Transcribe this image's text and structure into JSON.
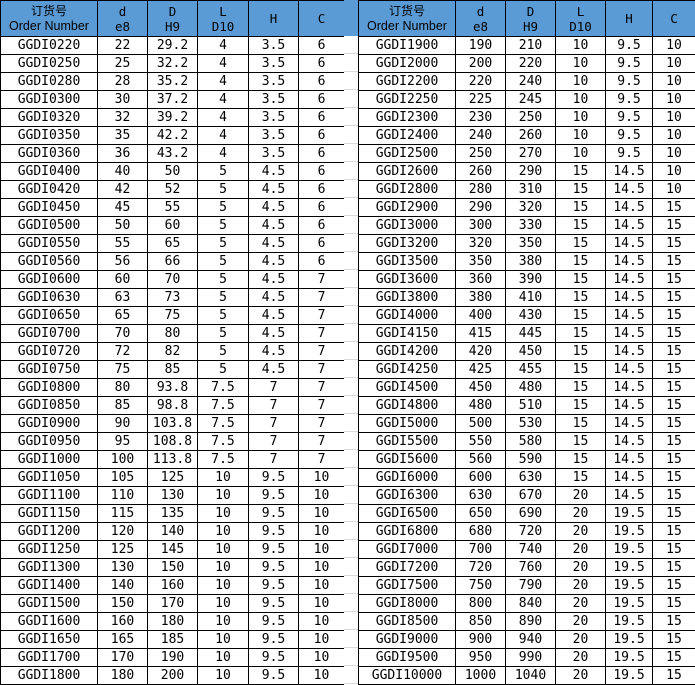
{
  "header": {
    "order_cn": "订货号",
    "order_en": "Order Number",
    "d": "d",
    "d_tol": "e8",
    "D": "D",
    "D_tol": "H9",
    "L": "L",
    "L_tol": "D10",
    "H": "H",
    "C": "C"
  },
  "colors": {
    "header_bg": "#5b9bd5"
  },
  "left_rows": [
    [
      "GGDI0220",
      "22",
      "29.2",
      "4",
      "3.5",
      "6"
    ],
    [
      "GGDI0250",
      "25",
      "32.2",
      "4",
      "3.5",
      "6"
    ],
    [
      "GGDI0280",
      "28",
      "35.2",
      "4",
      "3.5",
      "6"
    ],
    [
      "GGDI0300",
      "30",
      "37.2",
      "4",
      "3.5",
      "6"
    ],
    [
      "GGDI0320",
      "32",
      "39.2",
      "4",
      "3.5",
      "6"
    ],
    [
      "GGDI0350",
      "35",
      "42.2",
      "4",
      "3.5",
      "6"
    ],
    [
      "GGDI0360",
      "36",
      "43.2",
      "4",
      "3.5",
      "6"
    ],
    [
      "GGDI0400",
      "40",
      "50",
      "5",
      "4.5",
      "6"
    ],
    [
      "GGDI0420",
      "42",
      "52",
      "5",
      "4.5",
      "6"
    ],
    [
      "GGDI0450",
      "45",
      "55",
      "5",
      "4.5",
      "6"
    ],
    [
      "GGDI0500",
      "50",
      "60",
      "5",
      "4.5",
      "6"
    ],
    [
      "GGDI0550",
      "55",
      "65",
      "5",
      "4.5",
      "6"
    ],
    [
      "GGDI0560",
      "56",
      "66",
      "5",
      "4.5",
      "6"
    ],
    [
      "GGDI0600",
      "60",
      "70",
      "5",
      "4.5",
      "7"
    ],
    [
      "GGDI0630",
      "63",
      "73",
      "5",
      "4.5",
      "7"
    ],
    [
      "GGDI0650",
      "65",
      "75",
      "5",
      "4.5",
      "7"
    ],
    [
      "GGDI0700",
      "70",
      "80",
      "5",
      "4.5",
      "7"
    ],
    [
      "GGDI0720",
      "72",
      "82",
      "5",
      "4.5",
      "7"
    ],
    [
      "GGDI0750",
      "75",
      "85",
      "5",
      "4.5",
      "7"
    ],
    [
      "GGDI0800",
      "80",
      "93.8",
      "7.5",
      "7",
      "7"
    ],
    [
      "GGDI0850",
      "85",
      "98.8",
      "7.5",
      "7",
      "7"
    ],
    [
      "GGDI0900",
      "90",
      "103.8",
      "7.5",
      "7",
      "7"
    ],
    [
      "GGDI0950",
      "95",
      "108.8",
      "7.5",
      "7",
      "7"
    ],
    [
      "GGDI1000",
      "100",
      "113.8",
      "7.5",
      "7",
      "7"
    ],
    [
      "GGDI1050",
      "105",
      "125",
      "10",
      "9.5",
      "10"
    ],
    [
      "GGDI1100",
      "110",
      "130",
      "10",
      "9.5",
      "10"
    ],
    [
      "GGDI1150",
      "115",
      "135",
      "10",
      "9.5",
      "10"
    ],
    [
      "GGDI1200",
      "120",
      "140",
      "10",
      "9.5",
      "10"
    ],
    [
      "GGDI1250",
      "125",
      "145",
      "10",
      "9.5",
      "10"
    ],
    [
      "GGDI1300",
      "130",
      "150",
      "10",
      "9.5",
      "10"
    ],
    [
      "GGDI1400",
      "140",
      "160",
      "10",
      "9.5",
      "10"
    ],
    [
      "GGDI1500",
      "150",
      "170",
      "10",
      "9.5",
      "10"
    ],
    [
      "GGDI1600",
      "160",
      "180",
      "10",
      "9.5",
      "10"
    ],
    [
      "GGDI1650",
      "165",
      "185",
      "10",
      "9.5",
      "10"
    ],
    [
      "GGDI1700",
      "170",
      "190",
      "10",
      "9.5",
      "10"
    ],
    [
      "GGDI1800",
      "180",
      "200",
      "10",
      "9.5",
      "10"
    ]
  ],
  "right_rows": [
    [
      "GGDI1900",
      "190",
      "210",
      "10",
      "9.5",
      "10"
    ],
    [
      "GGDI2000",
      "200",
      "220",
      "10",
      "9.5",
      "10"
    ],
    [
      "GGDI2200",
      "220",
      "240",
      "10",
      "9.5",
      "10"
    ],
    [
      "GGDI2250",
      "225",
      "245",
      "10",
      "9.5",
      "10"
    ],
    [
      "GGDI2300",
      "230",
      "250",
      "10",
      "9.5",
      "10"
    ],
    [
      "GGDI2400",
      "240",
      "260",
      "10",
      "9.5",
      "10"
    ],
    [
      "GGDI2500",
      "250",
      "270",
      "10",
      "9.5",
      "10"
    ],
    [
      "GGDI2600",
      "260",
      "290",
      "15",
      "14.5",
      "10"
    ],
    [
      "GGDI2800",
      "280",
      "310",
      "15",
      "14.5",
      "10"
    ],
    [
      "GGDI2900",
      "290",
      "320",
      "15",
      "14.5",
      "15"
    ],
    [
      "GGDI3000",
      "300",
      "330",
      "15",
      "14.5",
      "15"
    ],
    [
      "GGDI3200",
      "320",
      "350",
      "15",
      "14.5",
      "15"
    ],
    [
      "GGDI3500",
      "350",
      "380",
      "15",
      "14.5",
      "15"
    ],
    [
      "GGDI3600",
      "360",
      "390",
      "15",
      "14.5",
      "15"
    ],
    [
      "GGDI3800",
      "380",
      "410",
      "15",
      "14.5",
      "15"
    ],
    [
      "GGDI4000",
      "400",
      "430",
      "15",
      "14.5",
      "15"
    ],
    [
      "GGDI4150",
      "415",
      "445",
      "15",
      "14.5",
      "15"
    ],
    [
      "GGDI4200",
      "420",
      "450",
      "15",
      "14.5",
      "15"
    ],
    [
      "GGDI4250",
      "425",
      "455",
      "15",
      "14.5",
      "15"
    ],
    [
      "GGDI4500",
      "450",
      "480",
      "15",
      "14.5",
      "15"
    ],
    [
      "GGDI4800",
      "480",
      "510",
      "15",
      "14.5",
      "15"
    ],
    [
      "GGDI5000",
      "500",
      "530",
      "15",
      "14.5",
      "15"
    ],
    [
      "GGDI5500",
      "550",
      "580",
      "15",
      "14.5",
      "15"
    ],
    [
      "GGDI5600",
      "560",
      "590",
      "15",
      "14.5",
      "15"
    ],
    [
      "GGDI6000",
      "600",
      "630",
      "15",
      "14.5",
      "15"
    ],
    [
      "GGDI6300",
      "630",
      "670",
      "20",
      "14.5",
      "15"
    ],
    [
      "GGDI6500",
      "650",
      "690",
      "20",
      "19.5",
      "15"
    ],
    [
      "GGDI6800",
      "680",
      "720",
      "20",
      "19.5",
      "15"
    ],
    [
      "GGDI7000",
      "700",
      "740",
      "20",
      "19.5",
      "15"
    ],
    [
      "GGDI7200",
      "720",
      "760",
      "20",
      "19.5",
      "15"
    ],
    [
      "GGDI7500",
      "750",
      "790",
      "20",
      "19.5",
      "15"
    ],
    [
      "GGDI8000",
      "800",
      "840",
      "20",
      "19.5",
      "15"
    ],
    [
      "GGDI8500",
      "850",
      "890",
      "20",
      "19.5",
      "15"
    ],
    [
      "GGDI9000",
      "900",
      "940",
      "20",
      "19.5",
      "15"
    ],
    [
      "GGDI9500",
      "950",
      "990",
      "20",
      "19.5",
      "15"
    ],
    [
      "GGDI10000",
      "1000",
      "1040",
      "20",
      "19.5",
      "15"
    ]
  ]
}
